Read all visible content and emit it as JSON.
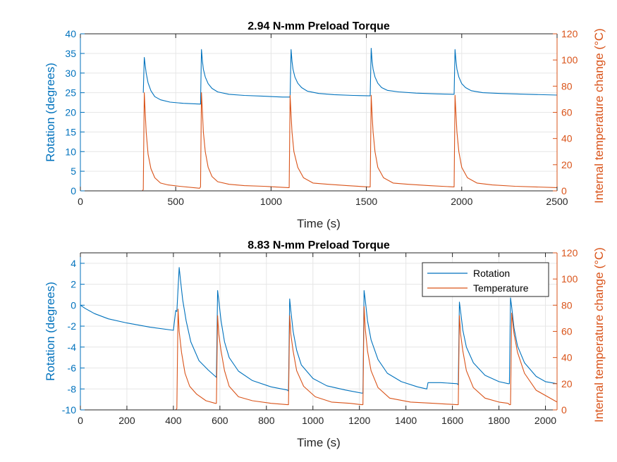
{
  "colors": {
    "rotation": "#0072BD",
    "temperature": "#D95319",
    "grid": "#e6e6e6",
    "axis": "#262626"
  },
  "chart_data": [
    {
      "type": "line",
      "title": "2.94 N-mm Preload Torque",
      "xlabel": "Time (s)",
      "ylabel_left": "Rotation (degrees)",
      "ylabel_right": "Internal temperature change (°C)",
      "xlim": [
        0,
        2500
      ],
      "ylim_left": [
        0,
        40
      ],
      "ylim_right": [
        0,
        120
      ],
      "xticks": [
        0,
        500,
        1000,
        1500,
        2000,
        2500
      ],
      "yticks_left": [
        0,
        5,
        10,
        15,
        20,
        25,
        30,
        35,
        40
      ],
      "yticks_right": [
        0,
        20,
        40,
        60,
        80,
        100,
        120
      ],
      "grid": true,
      "legend": false,
      "series": [
        {
          "name": "Rotation",
          "axis": "left",
          "x": [
            0,
            330,
            335,
            340,
            345,
            355,
            370,
            390,
            420,
            470,
            540,
            630,
            635,
            640,
            645,
            655,
            670,
            690,
            720,
            780,
            860,
            960,
            1060,
            1100,
            1105,
            1110,
            1115,
            1125,
            1140,
            1160,
            1190,
            1250,
            1330,
            1430,
            1520,
            1525,
            1530,
            1535,
            1545,
            1560,
            1580,
            1610,
            1670,
            1760,
            1870,
            1960,
            1965,
            1970,
            1975,
            1985,
            2000,
            2020,
            2050,
            2110,
            2200,
            2350,
            2500
          ],
          "y": [
            null,
            25,
            34,
            32,
            30,
            27.5,
            25.5,
            24,
            23.2,
            22.6,
            22.3,
            22.1,
            36,
            33,
            31,
            29,
            27.3,
            26.1,
            25.2,
            24.6,
            24.3,
            24.1,
            23.9,
            23.9,
            36,
            33,
            31,
            29,
            27.4,
            26.3,
            25.4,
            24.8,
            24.5,
            24.3,
            24.2,
            36.3,
            33,
            31,
            29,
            27.4,
            26.3,
            25.6,
            25.2,
            24.9,
            24.7,
            24.6,
            36,
            33,
            31,
            29,
            27.3,
            26.3,
            25.5,
            25,
            24.8,
            24.6,
            24.4
          ]
        },
        {
          "name": "Temperature",
          "axis": "right",
          "x": [
            325,
            330,
            335,
            340,
            345,
            355,
            370,
            390,
            420,
            460,
            520,
            625,
            630,
            635,
            640,
            645,
            655,
            670,
            690,
            720,
            780,
            860,
            960,
            1090,
            1095,
            1100,
            1105,
            1110,
            1120,
            1140,
            1170,
            1220,
            1300,
            1400,
            1510,
            1520,
            1525,
            1530,
            1535,
            1545,
            1560,
            1590,
            1640,
            1720,
            1830,
            1960,
            1965,
            1970,
            1975,
            1985,
            2000,
            2030,
            2080,
            2160,
            2280,
            2500
          ],
          "y": [
            0,
            1,
            75,
            60,
            45,
            28,
            17,
            10,
            6,
            4.5,
            3.5,
            2,
            3,
            75,
            60,
            45,
            30,
            18,
            11,
            7,
            5,
            4,
            3.5,
            2.5,
            2.5,
            73,
            58,
            45,
            30,
            18,
            10,
            6,
            5,
            4,
            3,
            3,
            73,
            58,
            45,
            30,
            18,
            10,
            6,
            5,
            4,
            3,
            73,
            58,
            45,
            30,
            18,
            10,
            6,
            4.5,
            3.5,
            2.5
          ]
        }
      ]
    },
    {
      "type": "line",
      "title": "8.83 N-mm Preload Torque",
      "xlabel": "Time (s)",
      "ylabel_left": "Rotation (degrees)",
      "ylabel_right": "Internal temperature change (°C)",
      "xlim": [
        0,
        2050
      ],
      "ylim_left": [
        -10,
        5
      ],
      "ylim_right": [
        0,
        120
      ],
      "xticks": [
        0,
        200,
        400,
        600,
        800,
        1000,
        1200,
        1400,
        1600,
        1800,
        2000
      ],
      "yticks_left": [
        -10,
        -8,
        -6,
        -4,
        -2,
        0,
        2,
        4
      ],
      "yticks_right": [
        0,
        20,
        40,
        60,
        80,
        100,
        120
      ],
      "grid": true,
      "legend": true,
      "legend_location": "top-right",
      "series": [
        {
          "name": "Rotation",
          "axis": "left",
          "x": [
            0,
            20,
            60,
            120,
            200,
            300,
            400,
            410,
            415,
            425,
            430,
            440,
            455,
            475,
            510,
            550,
            580,
            585,
            590,
            595,
            605,
            620,
            640,
            680,
            740,
            820,
            890,
            895,
            900,
            905,
            915,
            930,
            950,
            1000,
            1060,
            1140,
            1210,
            1215,
            1220,
            1225,
            1235,
            1250,
            1280,
            1320,
            1380,
            1450,
            1490,
            1495,
            1550,
            1620,
            1625,
            1630,
            1635,
            1645,
            1660,
            1690,
            1740,
            1800,
            1840,
            1845,
            1850,
            1855,
            1865,
            1880,
            1910,
            1960,
            2000,
            2050
          ],
          "y": [
            0,
            -0.3,
            -0.8,
            -1.3,
            -1.7,
            -2.1,
            -2.4,
            -0.5,
            -0.6,
            3.6,
            2.5,
            0.5,
            -1.5,
            -3.5,
            -5.3,
            -6.2,
            -6.8,
            -6.9,
            1.4,
            0.5,
            -1.5,
            -3.5,
            -5,
            -6.3,
            -7.2,
            -7.8,
            -8.1,
            -8.2,
            0.6,
            -0.5,
            -2.5,
            -4.3,
            -5.7,
            -7,
            -7.7,
            -8.1,
            -8.4,
            -8.4,
            1.4,
            0.5,
            -1.5,
            -3.3,
            -5.2,
            -6.5,
            -7.3,
            -7.8,
            -8,
            -7.4,
            -7.4,
            -7.5,
            -7.6,
            0.3,
            -0.6,
            -2.4,
            -4,
            -5.5,
            -6.7,
            -7.3,
            -7.5,
            -7.5,
            0.7,
            -0.2,
            -2.2,
            -3.9,
            -5.5,
            -6.8,
            -7.3,
            -7.5
          ]
        },
        {
          "name": "Temperature",
          "axis": "right",
          "x": [
            410,
            415,
            420,
            425,
            435,
            450,
            470,
            500,
            540,
            580,
            585,
            590,
            595,
            605,
            620,
            640,
            680,
            740,
            820,
            890,
            895,
            900,
            905,
            915,
            930,
            960,
            1010,
            1080,
            1160,
            1210,
            1215,
            1220,
            1225,
            1235,
            1250,
            1280,
            1330,
            1420,
            1520,
            1620,
            1625,
            1630,
            1635,
            1645,
            1660,
            1690,
            1740,
            1800,
            1840,
            1845,
            1850,
            1855,
            1865,
            1880,
            1910,
            1960,
            2050
          ],
          "y": [
            0,
            1,
            77,
            60,
            44,
            28,
            18,
            12,
            7,
            5,
            5,
            72,
            58,
            45,
            30,
            18,
            10,
            7,
            5,
            4,
            4,
            72,
            58,
            45,
            30,
            18,
            10,
            6,
            5,
            4,
            4,
            79,
            62,
            45,
            30,
            17,
            9,
            6,
            5,
            4,
            4,
            72,
            58,
            45,
            30,
            17,
            9,
            6,
            5,
            4,
            4,
            74,
            58,
            44,
            28,
            15,
            6
          ]
        }
      ]
    }
  ]
}
